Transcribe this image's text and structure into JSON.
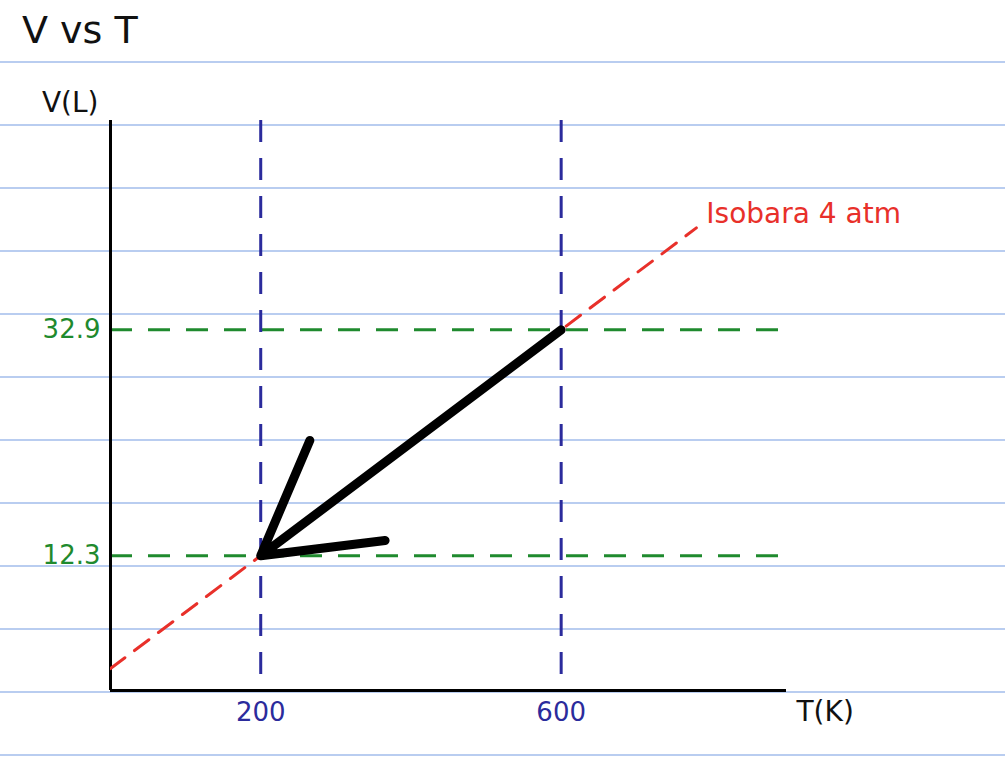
{
  "chart_data": {
    "type": "line",
    "title": "V vs T",
    "x_label": "T(K)",
    "y_label": "V(L)",
    "x": [
      0,
      200,
      600,
      780
    ],
    "series": [
      {
        "name": "Isobara 4 atm",
        "color": "#e8302a",
        "line_style": "dashed",
        "values": [
          2,
          12.3,
          32.9,
          42.2
        ]
      }
    ],
    "annotations": [
      {
        "type": "arrow",
        "x1": 600,
        "y1": 32.9,
        "x2": 200,
        "y2": 12.3,
        "color": "#000000"
      }
    ],
    "xlim": [
      0,
      900
    ],
    "ylim": [
      0,
      52
    ],
    "xticks": [
      200,
      600
    ],
    "yticks": [
      12.3,
      32.9
    ],
    "grid": true
  }
}
